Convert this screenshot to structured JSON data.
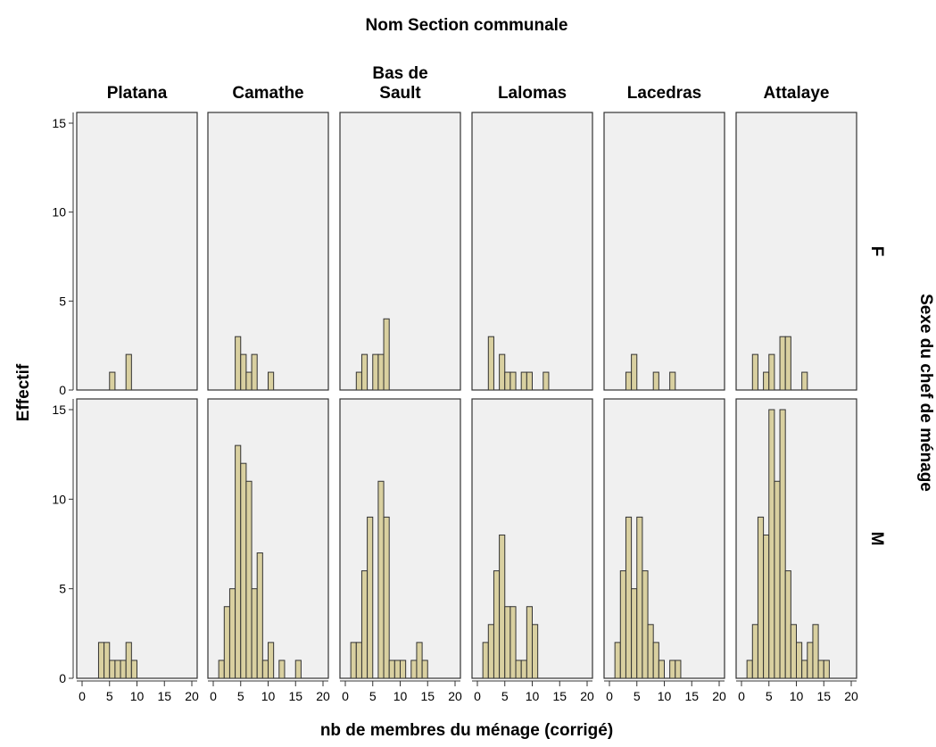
{
  "chart_data": {
    "type": "bar",
    "title": "Nom Section communale",
    "xlabel": "nb de membres du ménage (corrigé)",
    "ylabel": "Effectif",
    "row_label": "Sexe du chef de ménage",
    "columns": [
      "Platana",
      "Camathe",
      "Bas de Sault",
      "Lalomas",
      "Lacedras",
      "Attalaye"
    ],
    "rows": [
      "F",
      "M"
    ],
    "xlim": [
      0,
      20
    ],
    "xticks": [
      0,
      5,
      10,
      15,
      20
    ],
    "ylim": [
      0,
      15
    ],
    "yticks": [
      0,
      5,
      10,
      15
    ],
    "bin_width": 1,
    "bins_start": [
      1,
      2,
      3,
      4,
      5,
      6,
      7,
      8,
      9,
      10,
      11,
      12,
      13,
      14,
      15
    ],
    "grid": false,
    "colors": {
      "bar_fill": "#d9d0a0",
      "bar_stroke": "#333333",
      "panel_bg": "#f0f0f0",
      "panel_border": "#333333"
    },
    "panels": [
      {
        "column": "Platana",
        "row": "F",
        "values": [
          0,
          0,
          0,
          0,
          1,
          0,
          0,
          2,
          0,
          0,
          0,
          0,
          0,
          0,
          0
        ]
      },
      {
        "column": "Camathe",
        "row": "F",
        "values": [
          0,
          0,
          0,
          3,
          2,
          1,
          2,
          0,
          0,
          1,
          0,
          0,
          0,
          0,
          0
        ]
      },
      {
        "column": "Bas de Sault",
        "row": "F",
        "values": [
          0,
          1,
          2,
          0,
          2,
          2,
          4,
          0,
          0,
          0,
          0,
          0,
          0,
          0,
          0
        ]
      },
      {
        "column": "Lalomas",
        "row": "F",
        "values": [
          0,
          3,
          0,
          2,
          1,
          1,
          0,
          1,
          1,
          0,
          0,
          1,
          0,
          0,
          0
        ]
      },
      {
        "column": "Lacedras",
        "row": "F",
        "values": [
          0,
          0,
          1,
          2,
          0,
          0,
          0,
          1,
          0,
          0,
          1,
          0,
          0,
          0,
          0
        ]
      },
      {
        "column": "Attalaye",
        "row": "F",
        "values": [
          0,
          2,
          0,
          1,
          2,
          0,
          3,
          3,
          0,
          0,
          1,
          0,
          0,
          0,
          0
        ]
      },
      {
        "column": "Platana",
        "row": "M",
        "values": [
          0,
          0,
          2,
          2,
          1,
          1,
          1,
          2,
          1,
          0,
          0,
          0,
          0,
          0,
          0
        ]
      },
      {
        "column": "Camathe",
        "row": "M",
        "values": [
          1,
          4,
          5,
          13,
          12,
          11,
          5,
          7,
          1,
          2,
          0,
          1,
          0,
          0,
          1
        ]
      },
      {
        "column": "Bas de Sault",
        "row": "M",
        "values": [
          2,
          2,
          6,
          9,
          0,
          11,
          9,
          1,
          1,
          1,
          0,
          1,
          2,
          1,
          0
        ]
      },
      {
        "column": "Lalomas",
        "row": "M",
        "values": [
          2,
          3,
          6,
          8,
          4,
          4,
          1,
          1,
          4,
          3,
          0,
          0,
          0,
          0,
          0
        ]
      },
      {
        "column": "Lacedras",
        "row": "M",
        "values": [
          2,
          6,
          9,
          5,
          9,
          6,
          3,
          2,
          1,
          0,
          1,
          1,
          0,
          0,
          0
        ]
      },
      {
        "column": "Attalaye",
        "row": "M",
        "values": [
          1,
          3,
          9,
          8,
          15,
          11,
          15,
          6,
          3,
          2,
          1,
          2,
          3,
          1,
          1
        ]
      }
    ]
  }
}
